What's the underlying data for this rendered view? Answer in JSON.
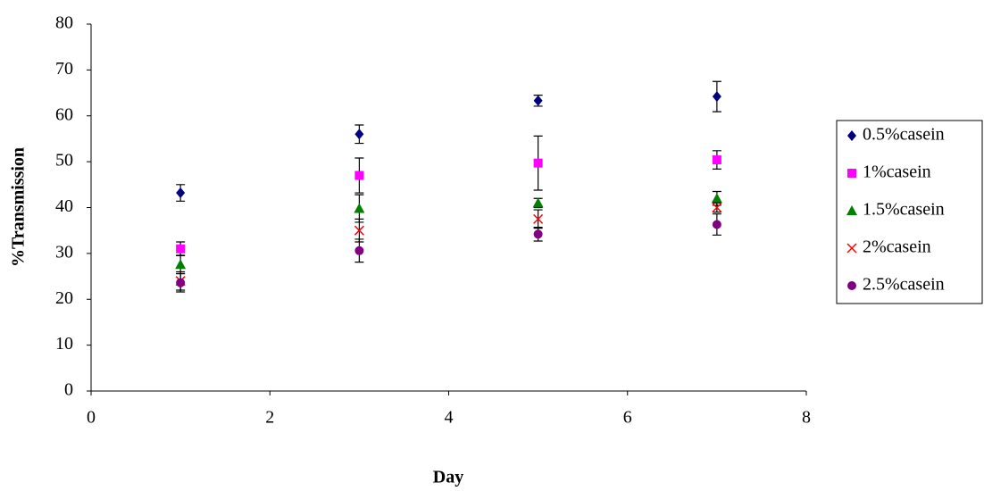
{
  "chart_data": {
    "type": "scatter",
    "x_label": "Day",
    "y_label": "%Transmission",
    "xlim": [
      0,
      8
    ],
    "xticks": [
      0,
      2,
      4,
      6,
      8
    ],
    "ylim": [
      0,
      80
    ],
    "yticks": [
      0,
      10,
      20,
      30,
      40,
      50,
      60,
      70,
      80
    ],
    "legend": "right",
    "series": [
      {
        "name": "0.5%casein",
        "color": "#000080",
        "marker": "diamond",
        "x": [
          1,
          3,
          5,
          7
        ],
        "values": [
          43.2,
          56,
          63.3,
          64.2
        ],
        "errors": [
          1.8,
          2,
          1.2,
          3.3
        ]
      },
      {
        "name": "1%casein",
        "color": "#ff00ff",
        "marker": "square",
        "x": [
          1,
          3,
          5,
          7
        ],
        "values": [
          31,
          47,
          49.7,
          50.4
        ],
        "errors": [
          1.5,
          3.8,
          5.9,
          2
        ]
      },
      {
        "name": "1.5%casein",
        "color": "#008000",
        "marker": "triangle",
        "x": [
          1,
          3,
          5,
          7
        ],
        "values": [
          27.6,
          39.8,
          41,
          42
        ],
        "errors": [
          2,
          3,
          1,
          1.5
        ]
      },
      {
        "name": "2%casein",
        "color": "#ff0000",
        "marker": "cross",
        "x": [
          1,
          3,
          5,
          7
        ],
        "values": [
          24,
          35,
          37.5,
          40
        ],
        "errors": [
          2,
          2.5,
          2,
          1
        ]
      },
      {
        "name": "2.5%casein",
        "color": "#800080",
        "marker": "circle",
        "x": [
          1,
          3,
          5,
          7
        ],
        "values": [
          23.6,
          30.6,
          34.2,
          36.3
        ],
        "errors": [
          2,
          2.5,
          1.5,
          2.3
        ]
      }
    ]
  }
}
